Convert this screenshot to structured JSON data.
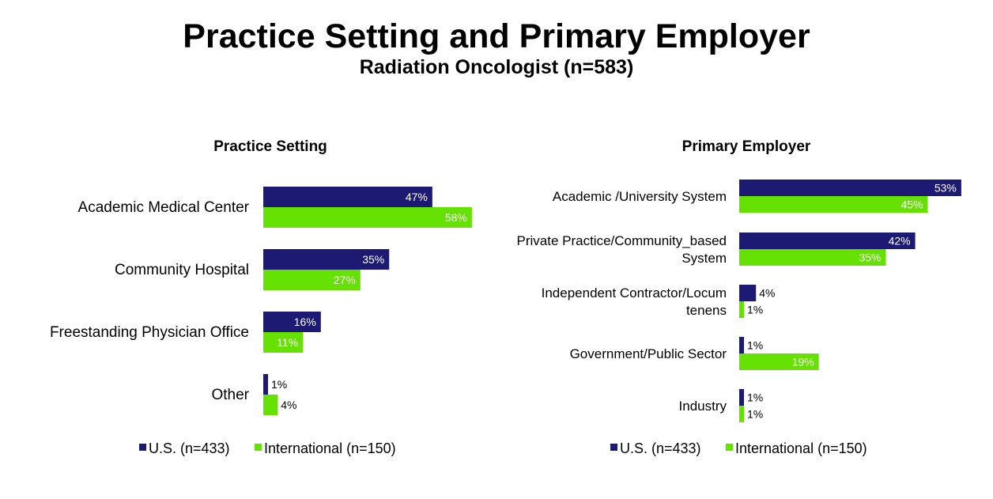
{
  "header": {
    "title": "Practice Setting and Primary Employer",
    "subtitle": "Radiation Oncologist (n=583)"
  },
  "colors": {
    "us": "#1c1a72",
    "international": "#66e104"
  },
  "chart_data": [
    {
      "type": "bar",
      "orientation": "horizontal",
      "title": "Practice Setting",
      "categories": [
        "Academic Medical Center",
        "Community Hospital",
        "Freestanding Physician Office",
        "Other"
      ],
      "series": [
        {
          "name": "U.S. (n=433)",
          "values": [
            47,
            35,
            16,
            1
          ],
          "labels": [
            "47%",
            "35%",
            "16%",
            "1%"
          ]
        },
        {
          "name": "International (n=150)",
          "values": [
            58,
            27,
            11,
            4
          ],
          "labels": [
            "58%",
            "27%",
            "11%",
            "4%"
          ]
        }
      ],
      "legend": "bottom"
    },
    {
      "type": "bar",
      "orientation": "horizontal",
      "title": "Primary Employer",
      "categories": [
        [
          "Academic /University System"
        ],
        [
          "Private Practice/Community_based",
          "System"
        ],
        [
          "Independent Contractor/Locum",
          "tenens"
        ],
        [
          "Government/Public Sector"
        ],
        [
          "Industry"
        ]
      ],
      "series": [
        {
          "name": "U.S. (n=433)",
          "values": [
            53,
            42,
            4,
            1,
            1
          ],
          "labels": [
            "53%",
            "42%",
            "4%",
            "1%",
            "1%"
          ]
        },
        {
          "name": "International (n=150)",
          "values": [
            45,
            35,
            1,
            19,
            1
          ],
          "labels": [
            "45%",
            "35%",
            "1%",
            "19%",
            "1%"
          ]
        }
      ],
      "legend": "bottom"
    }
  ]
}
